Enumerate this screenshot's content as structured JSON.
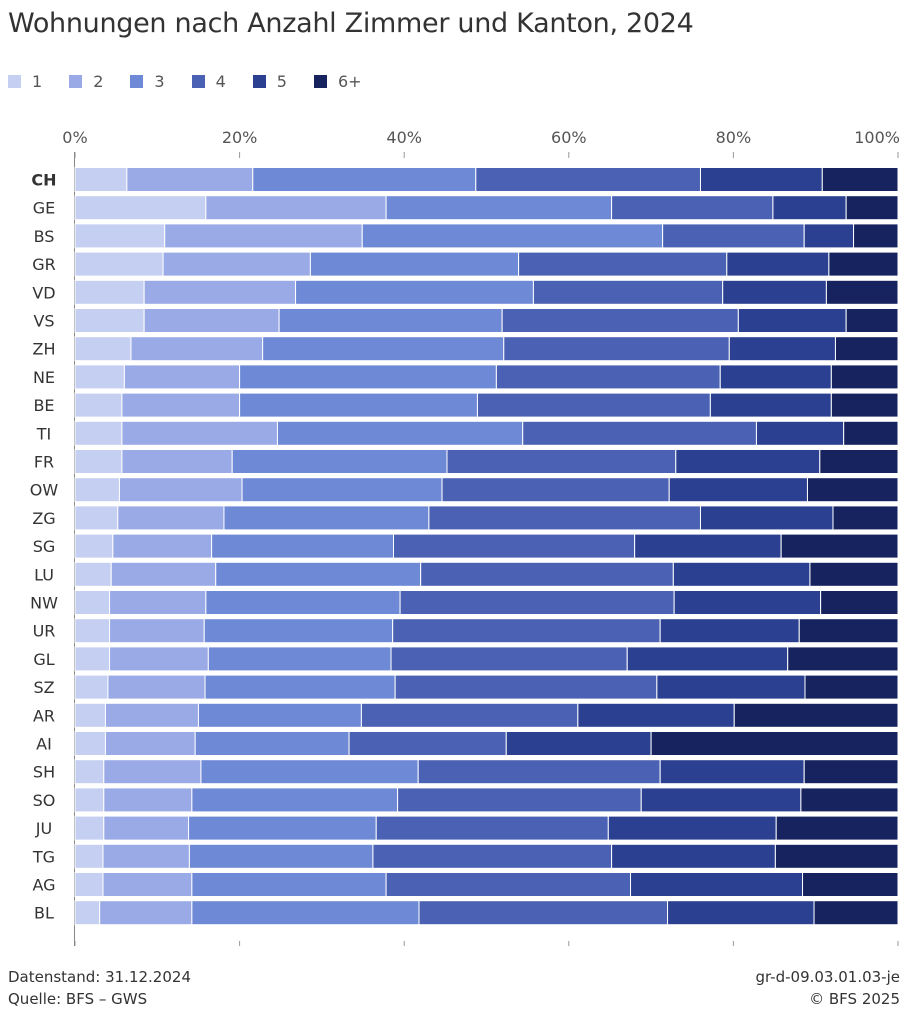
{
  "title": "Wohnungen nach Anzahl Zimmer und Kanton, 2024",
  "footer": {
    "stand": "Datenstand: 31.12.2024",
    "quelle": "Quelle: BFS – GWS",
    "code": "gr-d-09.03.01.03-je",
    "copyright": "© BFS 2025"
  },
  "chart_data": {
    "type": "bar",
    "orientation": "horizontal",
    "stacked": true,
    "percent": true,
    "xlim": [
      0,
      100
    ],
    "x_ticks": [
      "0%",
      "20%",
      "40%",
      "60%",
      "80%",
      "100%"
    ],
    "legend_position": "top-left",
    "bold_categories": [
      "CH"
    ],
    "categories": [
      "CH",
      "GE",
      "BS",
      "GR",
      "VD",
      "VS",
      "ZH",
      "NE",
      "BE",
      "TI",
      "FR",
      "OW",
      "ZG",
      "SG",
      "LU",
      "NW",
      "UR",
      "GL",
      "SZ",
      "AR",
      "AI",
      "SH",
      "SO",
      "JU",
      "TG",
      "AG",
      "BL"
    ],
    "series": [
      {
        "name": "1",
        "color": "#c5cff2",
        "values": [
          6.3,
          15.9,
          10.9,
          10.7,
          8.4,
          8.4,
          6.8,
          6.0,
          5.7,
          5.7,
          5.7,
          5.4,
          5.2,
          4.6,
          4.4,
          4.2,
          4.2,
          4.2,
          4.0,
          3.7,
          3.7,
          3.5,
          3.5,
          3.5,
          3.4,
          3.4,
          3.0
        ]
      },
      {
        "name": "2",
        "color": "#99aae6",
        "values": [
          15.3,
          21.9,
          24.0,
          17.9,
          18.4,
          16.4,
          16.0,
          14.0,
          14.3,
          18.9,
          13.4,
          14.9,
          12.9,
          12.0,
          12.7,
          11.7,
          11.5,
          12.0,
          11.8,
          11.3,
          10.9,
          11.8,
          10.7,
          10.3,
          10.5,
          10.8,
          11.2
        ]
      },
      {
        "name": "3",
        "color": "#6e89d6",
        "values": [
          27.1,
          27.4,
          36.5,
          25.3,
          28.9,
          27.1,
          29.3,
          31.2,
          28.9,
          29.8,
          26.1,
          24.3,
          24.9,
          22.1,
          24.9,
          23.6,
          22.9,
          22.2,
          23.1,
          19.8,
          18.7,
          26.4,
          25.0,
          22.8,
          22.3,
          23.6,
          27.6
        ]
      },
      {
        "name": "4",
        "color": "#4b62b4",
        "values": [
          27.3,
          19.6,
          17.2,
          25.3,
          23.0,
          28.7,
          27.4,
          27.2,
          28.3,
          28.4,
          27.8,
          27.6,
          33.0,
          29.3,
          30.7,
          33.3,
          32.5,
          28.7,
          31.8,
          26.3,
          19.1,
          29.4,
          29.6,
          28.2,
          29.0,
          29.7,
          30.2
        ]
      },
      {
        "name": "5",
        "color": "#2b4091",
        "values": [
          14.8,
          8.9,
          6.0,
          12.4,
          12.6,
          13.1,
          12.9,
          13.5,
          14.7,
          10.6,
          17.5,
          16.8,
          16.1,
          17.8,
          16.6,
          17.8,
          16.9,
          19.5,
          18.0,
          19.0,
          17.6,
          17.5,
          19.4,
          20.4,
          19.9,
          20.9,
          17.8
        ]
      },
      {
        "name": "6+",
        "color": "#16235e",
        "values": [
          9.2,
          6.3,
          5.4,
          8.4,
          8.7,
          6.3,
          7.6,
          8.1,
          8.1,
          6.6,
          9.5,
          11.0,
          7.9,
          14.2,
          10.7,
          9.4,
          12.0,
          13.4,
          11.3,
          19.9,
          30.0,
          11.4,
          11.8,
          14.8,
          14.9,
          11.6,
          10.2
        ]
      }
    ]
  }
}
